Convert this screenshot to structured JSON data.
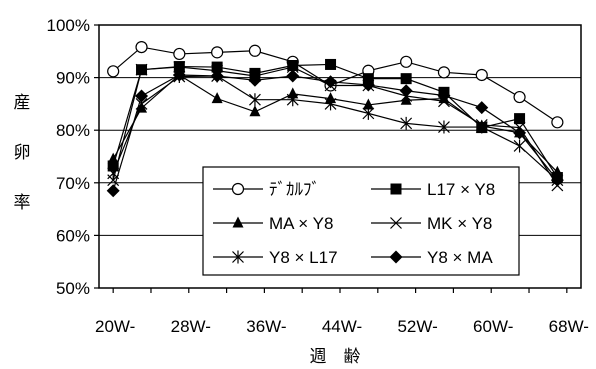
{
  "chart_data": {
    "type": "line",
    "title": "",
    "ylabel": "産卵率",
    "xlabel": "週　齢",
    "ylim": [
      50,
      100
    ],
    "y_ticks": [
      50,
      60,
      70,
      80,
      90,
      100
    ],
    "y_tick_labels": [
      "50%",
      "60%",
      "70%",
      "80%",
      "90%",
      "100%"
    ],
    "grid": "horizontal",
    "legend_position": "inside-bottom-center",
    "x_tick_labels": [
      "20W-",
      "28W-",
      "36W-",
      "44W-",
      "52W-",
      "60W-",
      "68W-"
    ],
    "x_tick_values": [
      20,
      28,
      36,
      44,
      52,
      60,
      68
    ],
    "x": [
      22,
      25,
      28,
      31,
      34,
      37,
      40,
      43,
      46,
      49,
      52,
      55,
      58,
      61,
      64,
      67
    ],
    "series": [
      {
        "name": "ﾃﾞｶﾙﾌﾞ",
        "marker": "circle-open",
        "x": [
          20,
          23,
          27,
          31,
          35,
          39,
          43,
          47,
          51,
          55,
          59,
          63,
          67
        ],
        "values": [
          91.2,
          95.8,
          94.5,
          94.8,
          95.1,
          93,
          88.5,
          91.3,
          93,
          91,
          90.5,
          86.3,
          81.5
        ]
      },
      {
        "name": "L17 × Y8",
        "marker": "square",
        "x": [
          20,
          23,
          27,
          31,
          35,
          39,
          43,
          47,
          51,
          55,
          59,
          63,
          67
        ],
        "values": [
          73.2,
          91.5,
          92.1,
          92,
          90.8,
          92.3,
          92.5,
          89.8,
          89.8,
          87.2,
          80.5,
          82.2,
          71
        ]
      },
      {
        "name": "MA × Y8",
        "marker": "triangle",
        "x": [
          20,
          23,
          27,
          31,
          35,
          39,
          43,
          47,
          51,
          55,
          59,
          63,
          67
        ],
        "values": [
          74.5,
          84.2,
          90.5,
          86,
          83.5,
          86.9,
          86,
          84.8,
          85.7,
          86,
          80.8,
          79.5,
          72
        ]
      },
      {
        "name": "MK × Y8",
        "marker": "x",
        "x": [
          20,
          23,
          27,
          31,
          35,
          39,
          43,
          47,
          51,
          55,
          59,
          63,
          67
        ],
        "values": [
          70.5,
          91.5,
          92,
          91.3,
          90.3,
          92,
          88.5,
          88.5,
          86.5,
          85.5,
          81,
          80.5,
          69.5
        ]
      },
      {
        "name": "Y8 × L17",
        "marker": "asterisk",
        "x": [
          20,
          23,
          27,
          31,
          35,
          39,
          43,
          47,
          51,
          55,
          59,
          63,
          67
        ],
        "values": [
          71.8,
          85,
          90.2,
          90.3,
          85.8,
          85.8,
          85,
          83.2,
          81.3,
          80.6,
          80.6,
          77,
          70.5
        ]
      },
      {
        "name": "Y8 × MA",
        "marker": "diamond",
        "x": [
          20,
          23,
          27,
          31,
          35,
          39,
          43,
          47,
          51,
          55,
          59,
          63,
          67
        ],
        "values": [
          68.5,
          86.5,
          90.5,
          90.3,
          89.5,
          90.3,
          89.2,
          88.6,
          87.5,
          86.6,
          84.3,
          79.5,
          70.5
        ]
      }
    ]
  }
}
